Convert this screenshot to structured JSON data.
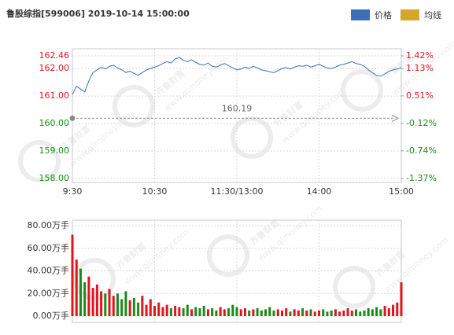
{
  "watermark": {
    "name": "齐鲁财富",
    "url": "www.qlmoney.com"
  },
  "chart_data": [
    {
      "type": "line",
      "title": "鲁股综指[599006] 2019-10-14 15:00:00",
      "categories": [
        "9:30",
        null,
        null,
        null,
        null,
        null,
        null,
        null,
        null,
        null,
        null,
        null,
        null,
        null,
        null,
        null,
        null,
        null,
        null,
        null,
        "10:30",
        null,
        null,
        null,
        null,
        null,
        null,
        null,
        null,
        null,
        null,
        null,
        null,
        null,
        null,
        null,
        null,
        null,
        null,
        null,
        "11:30/13:00",
        null,
        null,
        null,
        null,
        null,
        null,
        null,
        null,
        null,
        null,
        null,
        null,
        null,
        null,
        null,
        null,
        null,
        null,
        null,
        "14:00",
        null,
        null,
        null,
        null,
        null,
        null,
        null,
        null,
        null,
        null,
        null,
        null,
        null,
        null,
        null,
        null,
        null,
        null,
        null,
        "15:00"
      ],
      "series": [
        {
          "name": "价格",
          "color": "#3d6fb6",
          "values": [
            161.05,
            161.35,
            161.25,
            161.15,
            161.55,
            161.85,
            161.95,
            162.05,
            161.98,
            162.08,
            162.12,
            162.02,
            161.95,
            161.85,
            161.9,
            161.82,
            161.75,
            161.85,
            161.95,
            162.0,
            162.05,
            162.1,
            162.18,
            162.25,
            162.2,
            162.35,
            162.4,
            162.3,
            162.25,
            162.32,
            162.22,
            162.15,
            162.12,
            162.2,
            162.08,
            162.05,
            162.12,
            162.18,
            162.1,
            162.02,
            161.95,
            161.98,
            162.05,
            162.0,
            162.08,
            162.02,
            161.95,
            161.92,
            161.88,
            161.85,
            161.92,
            162.0,
            162.03,
            161.98,
            162.05,
            162.1,
            162.08,
            162.12,
            162.05,
            162.1,
            162.15,
            162.08,
            162.02,
            162.0,
            162.05,
            162.12,
            162.15,
            162.2,
            162.25,
            162.18,
            162.15,
            162.08,
            161.95,
            161.85,
            161.75,
            161.72,
            161.8,
            161.9,
            161.95,
            161.98,
            162.02
          ]
        },
        {
          "name": "均线",
          "color": "#d4a72c"
        }
      ],
      "ylim": [
        158.0,
        162.46
      ],
      "yticks": [
        162.46,
        {
          "value": 162,
          "label": "162.00"
        },
        {
          "value": 161,
          "label": "161.00"
        },
        {
          "value": 160,
          "label": "160.00"
        },
        {
          "value": 159,
          "label": "159.00"
        },
        {
          "value": 158,
          "label": "158.00"
        }
      ],
      "y2lim": [
        -1.37,
        1.42
      ],
      "y2ticks": [
        {
          "value": 1.42,
          "label": "1.42%"
        },
        {
          "value": 1.13,
          "label": "1.13%"
        },
        {
          "value": 0.51,
          "label": "0.51%"
        },
        {
          "value": -0.12,
          "label": "-0.12%"
        },
        {
          "value": -0.74,
          "label": "-0.74%"
        },
        {
          "value": -1.37,
          "label": "-1.37%"
        }
      ],
      "reference": 160.19,
      "up_color": "#e0141e",
      "down_color": "#1a8a1a",
      "grid": true
    },
    {
      "type": "bar",
      "values": [
        72,
        50,
        42,
        30,
        35,
        25,
        28,
        22,
        20,
        24,
        18,
        20,
        15,
        22,
        14,
        16,
        12,
        18,
        10,
        15,
        9,
        12,
        8,
        10,
        7,
        9,
        8,
        7,
        10,
        6,
        8,
        7,
        9,
        6,
        7,
        5,
        8,
        6,
        7,
        10,
        8,
        6,
        7,
        5,
        6,
        7,
        5,
        6,
        8,
        5,
        6,
        5,
        7,
        4,
        6,
        5,
        7,
        5,
        6,
        4,
        5,
        6,
        4,
        5,
        6,
        4,
        5,
        7,
        5,
        6,
        4,
        5,
        7,
        6,
        8,
        6,
        9,
        7,
        10,
        12,
        30
      ],
      "ylim": [
        0,
        80
      ],
      "yticks": [
        {
          "value": 80,
          "label": "80.00万手"
        },
        {
          "value": 60,
          "label": "60.00万手"
        },
        {
          "value": 40,
          "label": "40.00万手"
        },
        {
          "value": 20,
          "label": "20.00万手"
        },
        {
          "value": 0,
          "label": "0.00万手"
        }
      ],
      "up_color": "#e0141e",
      "down_color": "#1a8a1a",
      "grid": true
    }
  ]
}
